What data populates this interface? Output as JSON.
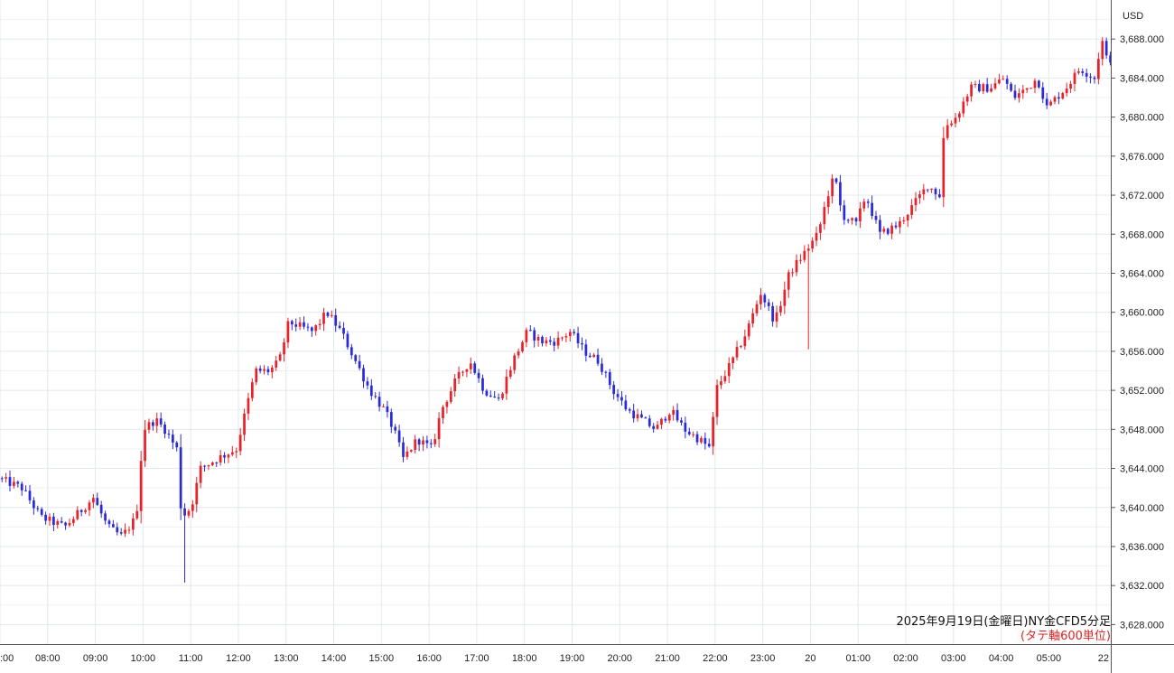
{
  "chart_data": {
    "type": "candlestick",
    "currency_label": "USD",
    "caption_line1": "2025年9月19日(金曜日)NY金CFD5分足",
    "caption_line2": "(タテ軸600単位)",
    "y_ticks": [
      "3,628.000",
      "3,632.000",
      "3,636.000",
      "3,640.000",
      "3,644.000",
      "3,648.000",
      "3,652.000",
      "3,656.000",
      "3,660.000",
      "3,664.000",
      "3,668.000",
      "3,672.000",
      "3,676.000",
      "3,680.000",
      "3,684.000",
      "3,688.000"
    ],
    "y_tick_values": [
      3628,
      3632,
      3636,
      3640,
      3644,
      3648,
      3652,
      3656,
      3660,
      3664,
      3668,
      3672,
      3676,
      3680,
      3684,
      3688
    ],
    "ylim": [
      3626,
      3692
    ],
    "x_ticks": [
      ":00",
      "08:00",
      "09:00",
      "10:00",
      "11:00",
      "12:00",
      "13:00",
      "14:00",
      "15:00",
      "16:00",
      "17:00",
      "18:00",
      "19:00",
      "20:00",
      "21:00",
      "22:00",
      "23:00",
      "20",
      "01:00",
      "02:00",
      "03:00",
      "04:00",
      "05:00",
      "22"
    ],
    "x_tick_hours": [
      7,
      8,
      9,
      10,
      11,
      12,
      13,
      14,
      15,
      16,
      17,
      18,
      19,
      20,
      21,
      22,
      23,
      24,
      25,
      26,
      27,
      28,
      29,
      30
    ],
    "xlim_hours": [
      7,
      30.3
    ],
    "up_color": "#e8222a",
    "down_color": "#2a2ad8",
    "grid": true,
    "anchors": [
      [
        7.0,
        3643
      ],
      [
        7.5,
        3642
      ],
      [
        7.9,
        3639
      ],
      [
        8.4,
        3638
      ],
      [
        8.8,
        3640
      ],
      [
        9.0,
        3641
      ],
      [
        9.3,
        3638
      ],
      [
        9.6,
        3637
      ],
      [
        9.9,
        3639
      ],
      [
        10.05,
        3648
      ],
      [
        10.3,
        3649
      ],
      [
        10.5,
        3648
      ],
      [
        10.75,
        3646
      ],
      [
        10.85,
        3639
      ],
      [
        11.05,
        3640
      ],
      [
        11.25,
        3644
      ],
      [
        11.6,
        3645
      ],
      [
        12.0,
        3646
      ],
      [
        12.2,
        3650
      ],
      [
        12.4,
        3654
      ],
      [
        12.7,
        3654
      ],
      [
        12.9,
        3655
      ],
      [
        13.1,
        3659
      ],
      [
        13.6,
        3658
      ],
      [
        13.9,
        3660
      ],
      [
        14.2,
        3658
      ],
      [
        14.5,
        3655
      ],
      [
        14.8,
        3652
      ],
      [
        15.1,
        3650
      ],
      [
        15.3,
        3648
      ],
      [
        15.5,
        3645
      ],
      [
        15.8,
        3647
      ],
      [
        16.1,
        3646
      ],
      [
        16.3,
        3650
      ],
      [
        16.6,
        3653
      ],
      [
        16.9,
        3655
      ],
      [
        17.2,
        3652
      ],
      [
        17.5,
        3651
      ],
      [
        17.8,
        3655
      ],
      [
        18.1,
        3658
      ],
      [
        18.4,
        3657
      ],
      [
        18.7,
        3657
      ],
      [
        19.0,
        3658
      ],
      [
        19.3,
        3656
      ],
      [
        19.6,
        3655
      ],
      [
        19.9,
        3652
      ],
      [
        20.2,
        3650
      ],
      [
        20.5,
        3649
      ],
      [
        20.8,
        3648
      ],
      [
        21.1,
        3650
      ],
      [
        21.4,
        3648
      ],
      [
        21.7,
        3647
      ],
      [
        21.95,
        3646
      ],
      [
        22.05,
        3652
      ],
      [
        22.4,
        3655
      ],
      [
        22.7,
        3658
      ],
      [
        23.0,
        3662
      ],
      [
        23.3,
        3659
      ],
      [
        23.6,
        3664
      ],
      [
        23.9,
        3666
      ],
      [
        24.2,
        3668
      ],
      [
        24.4,
        3672
      ],
      [
        24.55,
        3674
      ],
      [
        24.7,
        3670
      ],
      [
        25.0,
        3669
      ],
      [
        25.2,
        3672
      ],
      [
        25.5,
        3668
      ],
      [
        25.9,
        3669
      ],
      [
        26.2,
        3671
      ],
      [
        26.5,
        3673
      ],
      [
        26.75,
        3672
      ],
      [
        26.85,
        3679
      ],
      [
        27.1,
        3680
      ],
      [
        27.4,
        3683
      ],
      [
        27.8,
        3683
      ],
      [
        28.1,
        3684
      ],
      [
        28.3,
        3682
      ],
      [
        28.6,
        3683
      ],
      [
        28.8,
        3684
      ],
      [
        29.0,
        3681
      ],
      [
        29.4,
        3683
      ],
      [
        29.7,
        3685
      ],
      [
        30.0,
        3684
      ],
      [
        30.15,
        3688
      ],
      [
        30.25,
        3686
      ]
    ]
  }
}
